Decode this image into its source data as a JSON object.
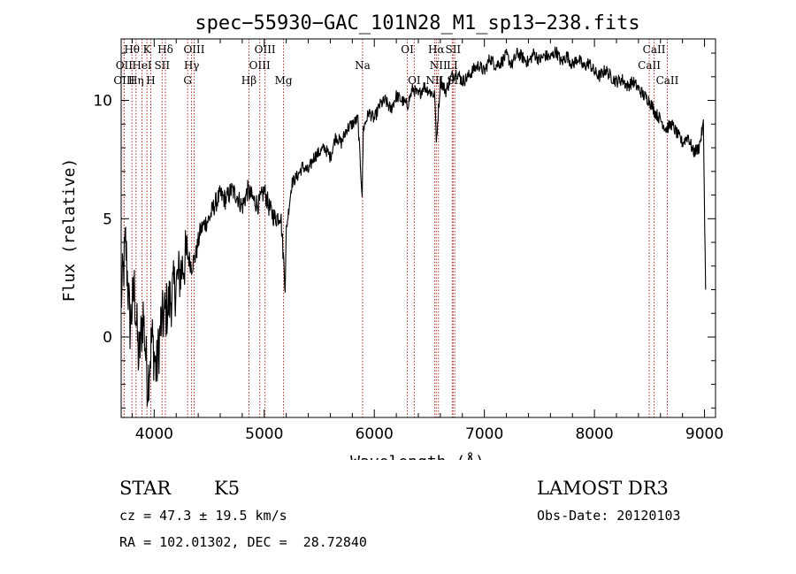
{
  "chart_data": {
    "type": "line",
    "title": "spec−55930−GAC_101N28_M1_sp13−238.fits",
    "xlabel": "Wavelength (Å)",
    "ylabel": "Flux (relative)",
    "xlim": [
      3700,
      9100
    ],
    "ylim": [
      -3.4,
      12.6
    ],
    "xticks": [
      4000,
      5000,
      6000,
      7000,
      8000,
      9000
    ],
    "yticks": [
      0,
      5,
      10
    ],
    "grid": false,
    "legend": "none",
    "series": [
      {
        "name": "spectrum",
        "x": [
          3700,
          3740,
          3780,
          3820,
          3860,
          3900,
          3940,
          3980,
          4020,
          4060,
          4100,
          4140,
          4180,
          4220,
          4260,
          4300,
          4340,
          4380,
          4420,
          4460,
          4500,
          4550,
          4600,
          4650,
          4700,
          4750,
          4800,
          4850,
          4900,
          4950,
          5000,
          5050,
          5100,
          5150,
          5190,
          5200,
          5250,
          5300,
          5350,
          5400,
          5450,
          5500,
          5550,
          5600,
          5650,
          5700,
          5750,
          5800,
          5850,
          5890,
          5900,
          5950,
          6000,
          6050,
          6100,
          6150,
          6200,
          6250,
          6300,
          6350,
          6400,
          6450,
          6500,
          6550,
          6563,
          6600,
          6650,
          6700,
          6750,
          6800,
          6850,
          6900,
          6950,
          7000,
          7050,
          7100,
          7150,
          7200,
          7250,
          7300,
          7350,
          7400,
          7450,
          7500,
          7550,
          7600,
          7650,
          7700,
          7750,
          7800,
          7850,
          7900,
          7950,
          8000,
          8050,
          8100,
          8150,
          8200,
          8250,
          8300,
          8350,
          8400,
          8450,
          8500,
          8550,
          8600,
          8650,
          8700,
          8750,
          8800,
          8850,
          8900,
          8950,
          8990,
          9010
        ],
        "y": [
          1.5,
          4.0,
          0.5,
          2.0,
          -1.0,
          1.0,
          -2.0,
          0.0,
          -1.5,
          0.5,
          1.0,
          1.5,
          2.0,
          2.5,
          3.0,
          3.5,
          3.0,
          3.5,
          4.5,
          4.8,
          5.0,
          5.6,
          6.0,
          5.8,
          6.2,
          6.0,
          5.5,
          6.2,
          5.8,
          5.6,
          6.2,
          5.4,
          5.0,
          5.2,
          2.2,
          4.5,
          6.5,
          6.8,
          7.2,
          7.0,
          7.6,
          7.8,
          8.0,
          7.6,
          8.5,
          8.2,
          8.8,
          9.0,
          9.2,
          6.0,
          8.8,
          9.5,
          9.2,
          9.8,
          10.0,
          9.6,
          10.2,
          10.0,
          9.8,
          10.5,
          10.2,
          10.6,
          10.4,
          10.2,
          8.2,
          10.8,
          10.4,
          11.0,
          11.2,
          10.8,
          11.0,
          11.3,
          11.5,
          11.2,
          11.8,
          11.5,
          11.6,
          11.9,
          11.5,
          12.0,
          11.8,
          11.6,
          12.0,
          11.7,
          11.9,
          11.8,
          12.1,
          11.6,
          11.9,
          11.5,
          11.8,
          11.4,
          11.6,
          11.2,
          11.0,
          11.3,
          11.0,
          10.8,
          10.9,
          10.6,
          10.8,
          10.5,
          10.2,
          10.0,
          9.5,
          9.2,
          8.8,
          9.0,
          8.6,
          8.2,
          8.5,
          7.8,
          8.0,
          9.0,
          2.0
        ]
      }
    ],
    "line_markers": [
      {
        "name": "Hθ",
        "x": 3798,
        "row": 1
      },
      {
        "name": "OII",
        "x": 3727,
        "row": 2
      },
      {
        "name": "OIII",
        "x": 3727,
        "row": 3
      },
      {
        "name": "K",
        "x": 3934,
        "row": 1
      },
      {
        "name": "HeI",
        "x": 3889,
        "row": 2
      },
      {
        "name": "Hη",
        "x": 3835,
        "row": 3
      },
      {
        "name": "H",
        "x": 3969,
        "row": 3
      },
      {
        "name": "SII",
        "x": 4072,
        "row": 2
      },
      {
        "name": "Hδ",
        "x": 4102,
        "row": 1
      },
      {
        "name": "OIII",
        "x": 4363,
        "row": 1
      },
      {
        "name": "Hγ",
        "x": 4340,
        "row": 2
      },
      {
        "name": "G",
        "x": 4304,
        "row": 3
      },
      {
        "name": "Hβ",
        "x": 4861,
        "row": 3
      },
      {
        "name": "OIII",
        "x": 5007,
        "row": 1
      },
      {
        "name": "OIII",
        "x": 4959,
        "row": 2
      },
      {
        "name": "Mg",
        "x": 5175,
        "row": 3
      },
      {
        "name": "Na",
        "x": 5893,
        "row": 2
      },
      {
        "name": "OI",
        "x": 6300,
        "row": 1
      },
      {
        "name": "OI",
        "x": 6363,
        "row": 3
      },
      {
        "name": "Hα",
        "x": 6563,
        "row": 1
      },
      {
        "name": "NII",
        "x": 6583,
        "row": 2
      },
      {
        "name": "NII",
        "x": 6548,
        "row": 3
      },
      {
        "name": "SII",
        "x": 6716,
        "row": 1
      },
      {
        "name": "LI",
        "x": 6708,
        "row": 2
      },
      {
        "name": "SII",
        "x": 6731,
        "row": 3
      },
      {
        "name": "CaII",
        "x": 8542,
        "row": 1
      },
      {
        "name": "CaII",
        "x": 8498,
        "row": 2
      },
      {
        "name": "CaII",
        "x": 8662,
        "row": 3
      }
    ]
  },
  "info": {
    "class": "STAR",
    "subclass": "K5",
    "survey": "LAMOST DR3",
    "velocity": "cz = 47.3 ± 19.5 km/s",
    "obs_date": "Obs-Date: 20120103",
    "coords": "RA = 102.01302, DEC =  28.72840"
  }
}
